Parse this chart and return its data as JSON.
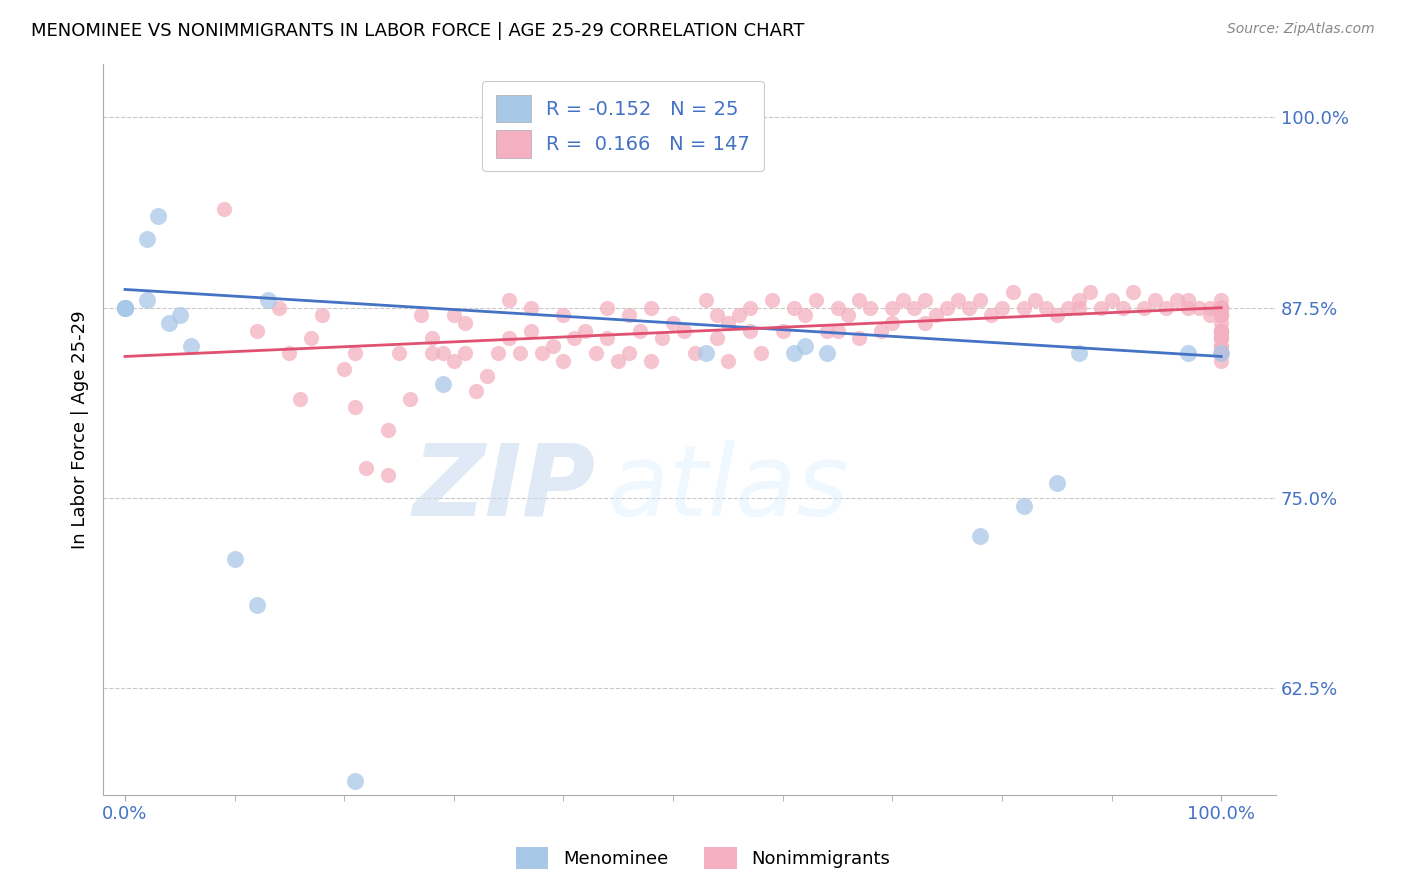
{
  "title": "MENOMINEE VS NONIMMIGRANTS IN LABOR FORCE | AGE 25-29 CORRELATION CHART",
  "source": "Source: ZipAtlas.com",
  "ylabel": "In Labor Force | Age 25-29",
  "xlim": [
    -0.02,
    1.05
  ],
  "ylim": [
    0.555,
    1.035
  ],
  "yticks": [
    0.625,
    0.75,
    0.875,
    1.0
  ],
  "ytick_labels": [
    "62.5%",
    "75.0%",
    "87.5%",
    "100.0%"
  ],
  "xtick_labels": [
    "0.0%",
    "100.0%"
  ],
  "xticks": [
    0.0,
    1.0
  ],
  "menominee_color": "#a8c8e8",
  "nonimmigrants_color": "#f4b0c0",
  "trend_menominee_color": "#4472c4",
  "trend_nonimmigrants_color": "#e05070",
  "legend_R_menominee": "-0.152",
  "legend_N_menominee": "25",
  "legend_R_nonimmigrants": "0.166",
  "legend_N_nonimmigrants": "147",
  "watermark_zip": "ZIP",
  "watermark_atlas": "atlas",
  "background_color": "#ffffff",
  "grid_color": "#bbbbbb",
  "axis_color": "#4472c4",
  "title_fontsize": 13,
  "label_fontsize": 11,
  "menominee_x": [
    0.0,
    0.0,
    0.0,
    0.0,
    0.02,
    0.02,
    0.03,
    0.04,
    0.05,
    0.06,
    0.1,
    0.12,
    0.13,
    0.21,
    0.29,
    0.53,
    0.61,
    0.62,
    0.64,
    0.78,
    0.82,
    0.85,
    0.87,
    0.97,
    1.0
  ],
  "menominee_y": [
    0.875,
    0.875,
    0.875,
    0.875,
    0.92,
    0.88,
    0.935,
    0.865,
    0.87,
    0.85,
    0.71,
    0.68,
    0.88,
    0.564,
    0.825,
    0.845,
    0.845,
    0.85,
    0.845,
    0.725,
    0.745,
    0.76,
    0.845,
    0.845,
    0.845
  ],
  "nonimmigrants_x": [
    0.09,
    0.12,
    0.14,
    0.15,
    0.16,
    0.17,
    0.18,
    0.2,
    0.21,
    0.21,
    0.22,
    0.24,
    0.24,
    0.25,
    0.26,
    0.27,
    0.28,
    0.28,
    0.29,
    0.3,
    0.3,
    0.31,
    0.31,
    0.32,
    0.33,
    0.34,
    0.35,
    0.35,
    0.36,
    0.37,
    0.37,
    0.38,
    0.39,
    0.4,
    0.4,
    0.41,
    0.42,
    0.43,
    0.44,
    0.44,
    0.45,
    0.46,
    0.46,
    0.47,
    0.48,
    0.48,
    0.49,
    0.5,
    0.51,
    0.52,
    0.53,
    0.54,
    0.54,
    0.55,
    0.55,
    0.56,
    0.57,
    0.57,
    0.58,
    0.59,
    0.6,
    0.61,
    0.62,
    0.63,
    0.64,
    0.65,
    0.65,
    0.66,
    0.67,
    0.67,
    0.68,
    0.69,
    0.7,
    0.7,
    0.71,
    0.72,
    0.73,
    0.73,
    0.74,
    0.75,
    0.76,
    0.77,
    0.78,
    0.79,
    0.8,
    0.81,
    0.82,
    0.83,
    0.84,
    0.85,
    0.86,
    0.87,
    0.87,
    0.88,
    0.89,
    0.9,
    0.91,
    0.92,
    0.93,
    0.94,
    0.95,
    0.96,
    0.97,
    0.97,
    0.98,
    0.99,
    0.99,
    1.0,
    1.0,
    1.0,
    1.0,
    1.0,
    1.0,
    1.0,
    1.0,
    1.0,
    1.0,
    1.0,
    1.0,
    1.0,
    1.0,
    1.0,
    1.0,
    1.0,
    1.0,
    1.0,
    1.0,
    1.0,
    1.0,
    1.0,
    1.0,
    1.0,
    1.0,
    1.0,
    1.0,
    1.0,
    1.0,
    1.0,
    1.0,
    1.0,
    1.0,
    1.0,
    1.0,
    1.0
  ],
  "nonimmigrants_y": [
    0.94,
    0.86,
    0.875,
    0.845,
    0.815,
    0.855,
    0.87,
    0.835,
    0.845,
    0.81,
    0.77,
    0.765,
    0.795,
    0.845,
    0.815,
    0.87,
    0.845,
    0.855,
    0.845,
    0.87,
    0.84,
    0.865,
    0.845,
    0.82,
    0.83,
    0.845,
    0.855,
    0.88,
    0.845,
    0.875,
    0.86,
    0.845,
    0.85,
    0.87,
    0.84,
    0.855,
    0.86,
    0.845,
    0.875,
    0.855,
    0.84,
    0.87,
    0.845,
    0.86,
    0.875,
    0.84,
    0.855,
    0.865,
    0.86,
    0.845,
    0.88,
    0.87,
    0.855,
    0.865,
    0.84,
    0.87,
    0.86,
    0.875,
    0.845,
    0.88,
    0.86,
    0.875,
    0.87,
    0.88,
    0.86,
    0.875,
    0.86,
    0.87,
    0.88,
    0.855,
    0.875,
    0.86,
    0.875,
    0.865,
    0.88,
    0.875,
    0.865,
    0.88,
    0.87,
    0.875,
    0.88,
    0.875,
    0.88,
    0.87,
    0.875,
    0.885,
    0.875,
    0.88,
    0.875,
    0.87,
    0.875,
    0.88,
    0.875,
    0.885,
    0.875,
    0.88,
    0.875,
    0.885,
    0.875,
    0.88,
    0.875,
    0.88,
    0.875,
    0.88,
    0.875,
    0.875,
    0.87,
    0.875,
    0.86,
    0.875,
    0.87,
    0.875,
    0.86,
    0.875,
    0.88,
    0.875,
    0.845,
    0.855,
    0.875,
    0.86,
    0.875,
    0.845,
    0.87,
    0.875,
    0.855,
    0.87,
    0.875,
    0.84,
    0.86,
    0.875,
    0.855,
    0.87,
    0.845,
    0.86,
    0.875,
    0.85,
    0.865,
    0.875,
    0.845,
    0.86,
    0.845,
    0.875,
    0.85,
    0.845
  ]
}
